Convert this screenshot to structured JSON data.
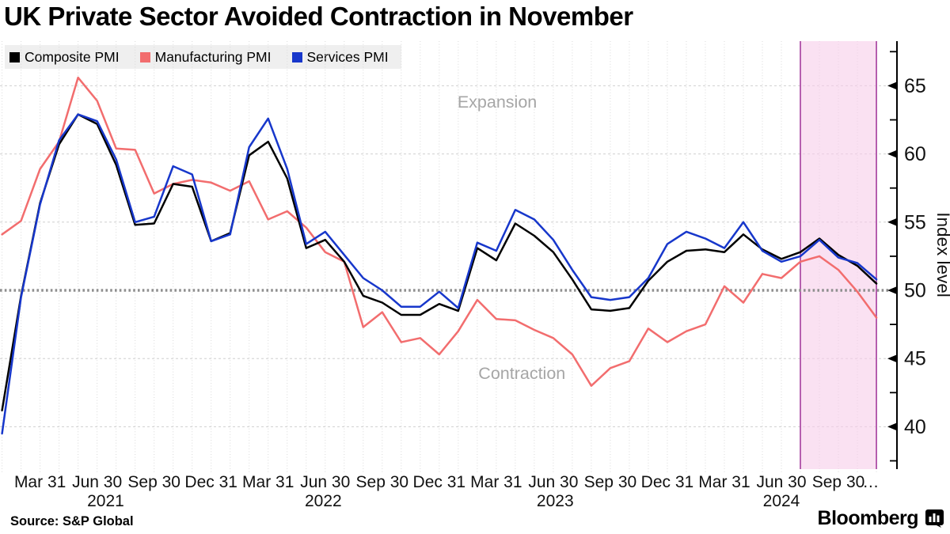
{
  "title": "UK Private Sector Avoided Contraction in November",
  "legend": {
    "items": [
      {
        "label": "Composite PMI",
        "color": "#000000"
      },
      {
        "label": "Manufacturing PMI",
        "color": "#f26d6e"
      },
      {
        "label": "Services PMI",
        "color": "#1737cb"
      }
    ]
  },
  "source": "Source: S&P Global",
  "brand": "Bloomberg",
  "chart_data": {
    "type": "line",
    "title": "UK Private Sector Avoided Contraction in November",
    "xlabel": "",
    "ylabel": "Index level",
    "ylim": [
      36.9,
      68.3
    ],
    "y_major_ticks": [
      40,
      45,
      50,
      55,
      60,
      65
    ],
    "y_minor_ticks": [
      37.5,
      42.5,
      47.5,
      52.5,
      57.5,
      62.5,
      67.5
    ],
    "reference_line": 50,
    "grid": "monthly dotted vertical, dashed horizontal",
    "legend_position": "top-left",
    "months": [
      "2021-01",
      "2021-02",
      "2021-03",
      "2021-04",
      "2021-05",
      "2021-06",
      "2021-07",
      "2021-08",
      "2021-09",
      "2021-10",
      "2021-11",
      "2021-12",
      "2022-01",
      "2022-02",
      "2022-03",
      "2022-04",
      "2022-05",
      "2022-06",
      "2022-07",
      "2022-08",
      "2022-09",
      "2022-10",
      "2022-11",
      "2022-12",
      "2023-01",
      "2023-02",
      "2023-03",
      "2023-04",
      "2023-05",
      "2023-06",
      "2023-07",
      "2023-08",
      "2023-09",
      "2023-10",
      "2023-11",
      "2023-12",
      "2024-01",
      "2024-02",
      "2024-03",
      "2024-04",
      "2024-05",
      "2024-06",
      "2024-07",
      "2024-08",
      "2024-09",
      "2024-10",
      "2024-11"
    ],
    "series": [
      {
        "name": "Composite PMI",
        "color": "#000000",
        "values": [
          41.2,
          49.6,
          56.4,
          60.7,
          62.9,
          62.2,
          59.2,
          54.8,
          54.9,
          57.8,
          57.6,
          53.6,
          54.2,
          59.9,
          60.9,
          58.2,
          53.1,
          53.7,
          52.1,
          49.6,
          49.1,
          48.2,
          48.2,
          49.0,
          48.5,
          53.1,
          52.2,
          54.9,
          54.0,
          52.8,
          50.8,
          48.6,
          48.5,
          48.7,
          50.7,
          52.1,
          52.9,
          53.0,
          52.8,
          54.1,
          53.0,
          52.3,
          52.8,
          53.8,
          52.6,
          51.8,
          50.5
        ]
      },
      {
        "name": "Manufacturing PMI",
        "color": "#f26d6e",
        "values": [
          54.1,
          55.1,
          58.9,
          60.9,
          65.6,
          63.9,
          60.4,
          60.3,
          57.1,
          57.8,
          58.1,
          57.9,
          57.3,
          58.0,
          55.2,
          55.8,
          54.6,
          52.8,
          52.1,
          47.3,
          48.4,
          46.2,
          46.5,
          45.3,
          47.0,
          49.3,
          47.9,
          47.8,
          47.1,
          46.5,
          45.3,
          43.0,
          44.3,
          44.8,
          47.2,
          46.2,
          47.0,
          47.5,
          50.3,
          49.1,
          51.2,
          50.9,
          52.1,
          52.5,
          51.5,
          49.9,
          48.0
        ]
      },
      {
        "name": "Services PMI",
        "color": "#1737cb",
        "values": [
          39.5,
          49.5,
          56.3,
          61.0,
          62.9,
          62.4,
          59.6,
          55.0,
          55.4,
          59.1,
          58.5,
          53.6,
          54.1,
          60.5,
          62.6,
          58.9,
          53.4,
          54.3,
          52.6,
          50.9,
          50.0,
          48.8,
          48.8,
          49.9,
          48.7,
          53.5,
          52.9,
          55.9,
          55.2,
          53.7,
          51.5,
          49.5,
          49.3,
          49.5,
          50.9,
          53.4,
          54.3,
          53.8,
          53.1,
          55.0,
          52.9,
          52.1,
          52.5,
          53.7,
          52.4,
          52.0,
          50.8
        ]
      }
    ],
    "x_tick_labels": [
      {
        "label": "Mar 31",
        "m": 2
      },
      {
        "label": "Jun 30",
        "m": 5
      },
      {
        "label": "Sep 30",
        "m": 8
      },
      {
        "label": "Dec 31",
        "m": 11
      },
      {
        "label": "Mar 31",
        "m": 14
      },
      {
        "label": "Jun 30",
        "m": 17
      },
      {
        "label": "Sep 30",
        "m": 20
      },
      {
        "label": "Dec 31",
        "m": 23
      },
      {
        "label": "Mar 31",
        "m": 26
      },
      {
        "label": "Jun 30",
        "m": 29
      },
      {
        "label": "Sep 30",
        "m": 32
      },
      {
        "label": "Dec 31",
        "m": 35
      },
      {
        "label": "Mar 31",
        "m": 38
      },
      {
        "label": "Jun 30",
        "m": 41
      },
      {
        "label": "Sep 30",
        "m": 44
      },
      {
        "label": "…",
        "m": 45.7
      }
    ],
    "year_labels": [
      {
        "label": "2021",
        "m": 5.45
      },
      {
        "label": "2022",
        "m": 16.9
      },
      {
        "label": "2023",
        "m": 29.1
      },
      {
        "label": "2024",
        "m": 41.0
      }
    ],
    "annotations": [
      {
        "text": "Expansion",
        "m": 26.05,
        "value": 63.4,
        "color": "#a6a6a6"
      },
      {
        "text": "Contraction",
        "m": 27.35,
        "value": 43.5,
        "color": "#a6a6a6"
      }
    ],
    "highlight_region": {
      "from_m": 42,
      "to_m": 46,
      "fill": "#f7cde9",
      "fill_opacity": 0.6,
      "border": "#a53c9d",
      "note": "Aug-Nov 2024"
    }
  }
}
